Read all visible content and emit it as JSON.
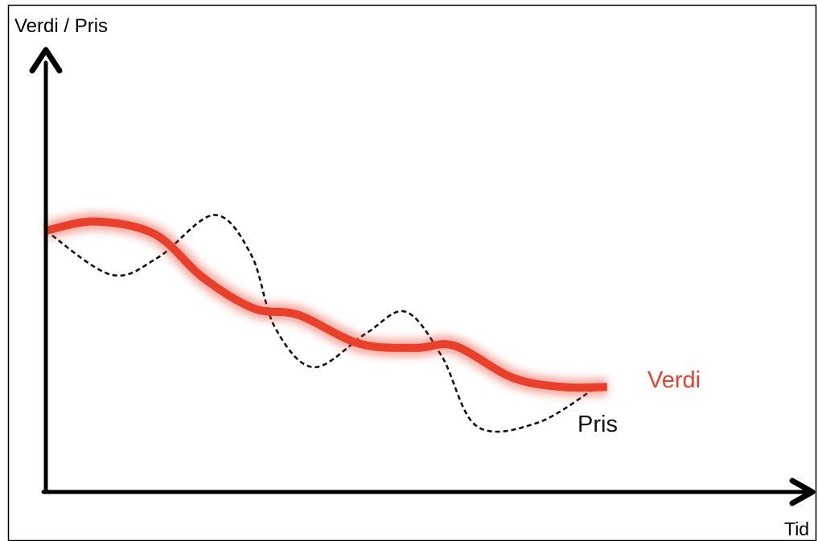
{
  "chart_data": {
    "type": "line",
    "title": "",
    "ylabel": "Verdi / Pris",
    "xlabel": "Tid",
    "xticks": "none",
    "yticks": "none",
    "grid": false,
    "xlim": [
      0,
      100
    ],
    "ylim": [
      0,
      100
    ],
    "series": [
      {
        "name": "Verdi",
        "color": "#e8402a",
        "style": "thick-glow",
        "label_position": "end-right",
        "points": [
          [
            0,
            63.5
          ],
          [
            6.6,
            65.7
          ],
          [
            14.4,
            62.6
          ],
          [
            20.7,
            52.1
          ],
          [
            27.4,
            44.6
          ],
          [
            33.3,
            43.0
          ],
          [
            41.4,
            36.0
          ],
          [
            48.8,
            35.0
          ],
          [
            53.9,
            35.5
          ],
          [
            61.5,
            27.8
          ],
          [
            68.1,
            25.5
          ],
          [
            74.0,
            25.5
          ]
        ]
      },
      {
        "name": "Pris",
        "color": "#111111",
        "style": "dashed",
        "label_position": "end-below",
        "points": [
          [
            0,
            63.5
          ],
          [
            8.6,
            52.8
          ],
          [
            14.8,
            57.0
          ],
          [
            22.2,
            67.3
          ],
          [
            27.1,
            57.5
          ],
          [
            30.2,
            40.0
          ],
          [
            35.3,
            30.3
          ],
          [
            42.2,
            38.5
          ],
          [
            47.4,
            43.8
          ],
          [
            52.2,
            33.0
          ],
          [
            56.8,
            16.0
          ],
          [
            64.8,
            16.8
          ],
          [
            72.6,
            25.5
          ]
        ]
      }
    ]
  }
}
